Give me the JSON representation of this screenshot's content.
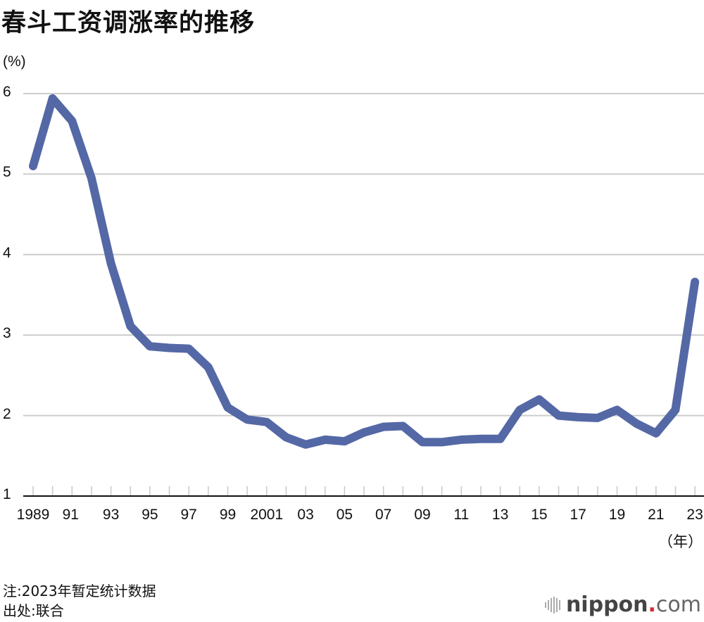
{
  "title": "春斗工资调涨率的推移",
  "y_unit": "(%)",
  "x_unit": "（年）",
  "notes": {
    "note": "注:2023年暂定统计数据",
    "source": "出处:联合"
  },
  "brand": {
    "name": "nippon",
    "dot": ".",
    "tld": "com"
  },
  "colors": {
    "line": "#5468A6",
    "grid": "#CCCCCC",
    "axis": "#111111",
    "brand_dot": "#E0232B"
  },
  "chart_data": {
    "type": "line",
    "title": "春斗工资调涨率的推移",
    "xlabel": "（年）",
    "ylabel": "(%)",
    "ylim": [
      1,
      6
    ],
    "yticks": [
      1,
      2,
      3,
      4,
      5,
      6
    ],
    "grid": true,
    "x_tick_labels": [
      "1989",
      "91",
      "93",
      "95",
      "97",
      "99",
      "2001",
      "03",
      "05",
      "07",
      "09",
      "11",
      "13",
      "15",
      "17",
      "19",
      "21",
      "23"
    ],
    "x": [
      1989,
      1990,
      1991,
      1992,
      1993,
      1994,
      1995,
      1996,
      1997,
      1998,
      1999,
      2000,
      2001,
      2002,
      2003,
      2004,
      2005,
      2006,
      2007,
      2008,
      2009,
      2010,
      2011,
      2012,
      2013,
      2014,
      2015,
      2016,
      2017,
      2018,
      2019,
      2020,
      2021,
      2022,
      2023
    ],
    "series": [
      {
        "name": "春斗工资调涨率",
        "values": [
          5.1,
          5.94,
          5.66,
          4.95,
          3.89,
          3.11,
          2.86,
          2.84,
          2.83,
          2.6,
          2.1,
          1.95,
          1.92,
          1.73,
          1.64,
          1.7,
          1.68,
          1.79,
          1.86,
          1.87,
          1.67,
          1.67,
          1.7,
          1.71,
          1.71,
          2.07,
          2.2,
          2.0,
          1.98,
          1.97,
          2.07,
          1.9,
          1.78,
          2.07,
          3.66
        ]
      }
    ],
    "notes": [
      "注:2023年暂定统计数据",
      "出处:联合"
    ]
  }
}
